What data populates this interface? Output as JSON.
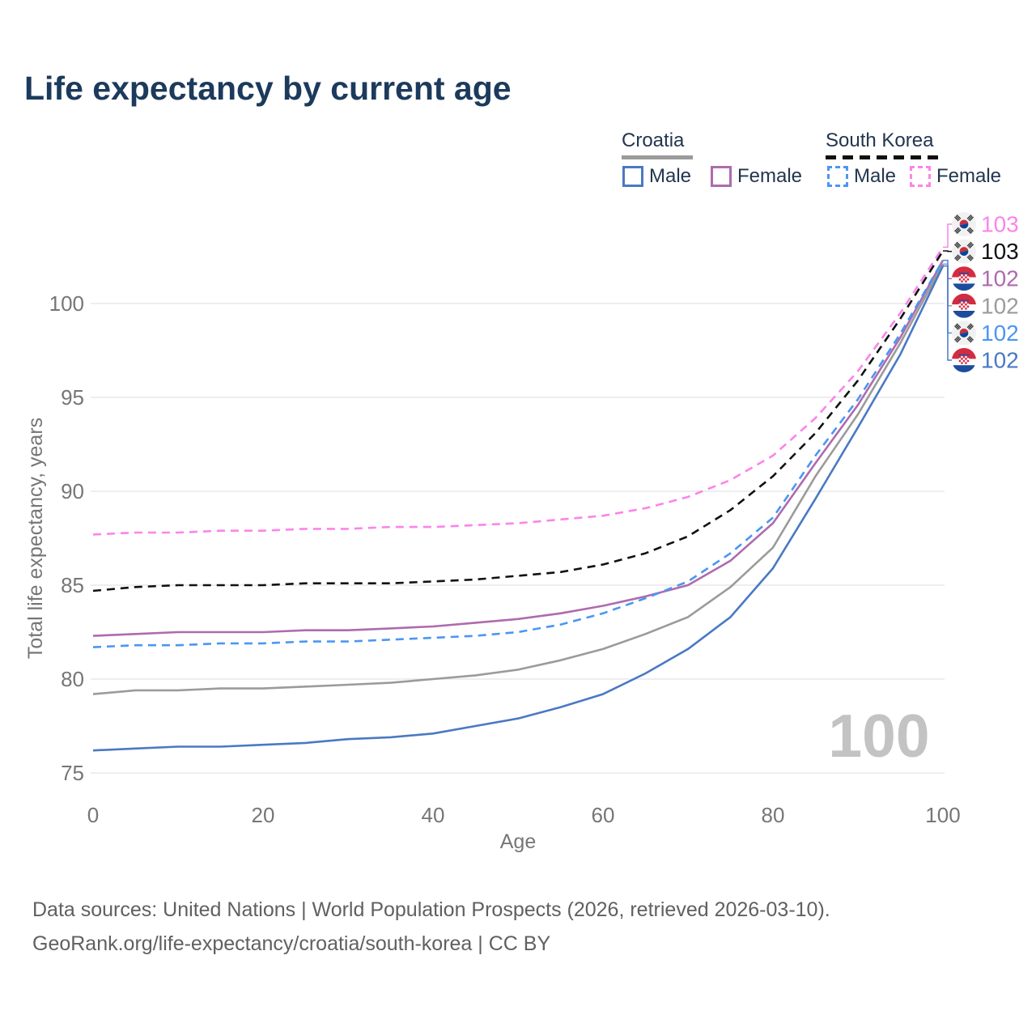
{
  "page": {
    "title": "Life expectancy by current age",
    "source_line1": "Data sources: United Nations | World Population Prospects (2026, retrieved 2026-03-10).",
    "source_line2": "GeoRank.org/life-expectancy/croatia/south-korea | CC BY"
  },
  "colors": {
    "title": "#1c3a5c",
    "legend_text": "#22364e",
    "axis": "#767676",
    "grid": "#e8e8e8",
    "watermark": "#c3c3c3",
    "source": "#606060",
    "croatia_male": "#4a79c4",
    "croatia_female": "#ae6bae",
    "croatia_total": "#9b9b9b",
    "south_korea_male": "#4b96f3",
    "south_korea_female": "#fb84ea",
    "south_korea_total": "#111111"
  },
  "legend": {
    "groups": [
      {
        "title": "Croatia",
        "line_style": "solid",
        "underline_color": "#9b9b9b",
        "items": [
          {
            "label": "Male",
            "color": "#4a79c4",
            "dashed": false
          },
          {
            "label": "Female",
            "color": "#ae6bae",
            "dashed": false
          }
        ]
      },
      {
        "title": "South Korea",
        "line_style": "dashed",
        "underline_color": "#111111",
        "items": [
          {
            "label": "Male",
            "color": "#4b96f3",
            "dashed": true
          },
          {
            "label": "Female",
            "color": "#fb84ea",
            "dashed": true
          }
        ]
      }
    ]
  },
  "watermark": "100",
  "chart_data": {
    "type": "line",
    "title": "Life expectancy by current age",
    "xlabel": "Age",
    "ylabel": "Total life expectancy, years",
    "xlim": [
      0,
      100
    ],
    "ylim": [
      74,
      104
    ],
    "xticks": [
      0,
      20,
      40,
      60,
      80,
      100
    ],
    "yticks": [
      75,
      80,
      85,
      90,
      95,
      100
    ],
    "grid": "horizontal",
    "legend_position": "top-right",
    "x": [
      0,
      5,
      10,
      15,
      20,
      25,
      30,
      35,
      40,
      45,
      50,
      55,
      60,
      65,
      70,
      75,
      80,
      85,
      90,
      95,
      100
    ],
    "series": [
      {
        "name": "South Korea Female",
        "key": "south-korea-female",
        "color": "#fb84ea",
        "dashed": true,
        "values": [
          87.7,
          87.8,
          87.8,
          87.9,
          87.9,
          88.0,
          88.0,
          88.1,
          88.1,
          88.2,
          88.3,
          88.5,
          88.7,
          89.1,
          89.7,
          90.6,
          91.9,
          93.9,
          96.4,
          99.5,
          103.0
        ]
      },
      {
        "name": "South Korea",
        "key": "south-korea-total",
        "color": "#111111",
        "dashed": true,
        "values": [
          84.7,
          84.9,
          85.0,
          85.0,
          85.0,
          85.1,
          85.1,
          85.1,
          85.2,
          85.3,
          85.5,
          85.7,
          86.1,
          86.7,
          87.6,
          89.0,
          90.8,
          93.1,
          95.9,
          99.2,
          102.8
        ]
      },
      {
        "name": "Croatia Female",
        "key": "croatia-female",
        "color": "#ae6bae",
        "dashed": false,
        "values": [
          82.3,
          82.4,
          82.5,
          82.5,
          82.5,
          82.6,
          82.6,
          82.7,
          82.8,
          83.0,
          83.2,
          83.5,
          83.9,
          84.4,
          85.0,
          86.3,
          88.3,
          91.5,
          94.6,
          98.2,
          102.3
        ]
      },
      {
        "name": "South Korea Male",
        "key": "south-korea-male",
        "color": "#4b96f3",
        "dashed": true,
        "values": [
          81.7,
          81.8,
          81.8,
          81.9,
          81.9,
          82.0,
          82.0,
          82.1,
          82.2,
          82.3,
          82.5,
          82.9,
          83.5,
          84.3,
          85.2,
          86.7,
          88.6,
          91.9,
          94.9,
          98.4,
          102.3
        ]
      },
      {
        "name": "Croatia",
        "key": "croatia-total",
        "color": "#9b9b9b",
        "dashed": false,
        "values": [
          79.2,
          79.4,
          79.4,
          79.5,
          79.5,
          79.6,
          79.7,
          79.8,
          80.0,
          80.2,
          80.5,
          81.0,
          81.6,
          82.4,
          83.3,
          84.9,
          87.0,
          90.8,
          94.1,
          97.9,
          102.1
        ]
      },
      {
        "name": "Croatia Male",
        "key": "croatia-male",
        "color": "#4a79c4",
        "dashed": false,
        "values": [
          76.2,
          76.3,
          76.4,
          76.4,
          76.5,
          76.6,
          76.8,
          76.9,
          77.1,
          77.5,
          77.9,
          78.5,
          79.2,
          80.3,
          81.6,
          83.3,
          85.9,
          89.6,
          93.4,
          97.3,
          102.0
        ]
      }
    ]
  },
  "end_labels": [
    {
      "flag": "kr",
      "value": "103",
      "color": "#fb84ea",
      "series_key": "south-korea-female"
    },
    {
      "flag": "kr",
      "value": "103",
      "color": "#111111",
      "series_key": "south-korea-total"
    },
    {
      "flag": "hr",
      "value": "102",
      "color": "#ae6bae",
      "series_key": "croatia-female"
    },
    {
      "flag": "hr",
      "value": "102",
      "color": "#9b9b9b",
      "series_key": "croatia-total"
    },
    {
      "flag": "kr",
      "value": "102",
      "color": "#4b96f3",
      "series_key": "south-korea-male"
    },
    {
      "flag": "hr",
      "value": "102",
      "color": "#4a79c4",
      "series_key": "croatia-male"
    }
  ]
}
